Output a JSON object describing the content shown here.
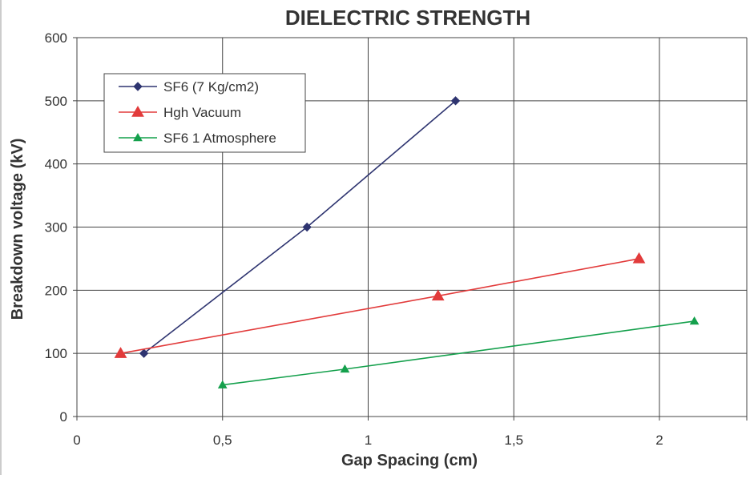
{
  "chart_data": {
    "type": "line",
    "title": "DIELECTRIC STRENGTH",
    "xlabel": "Gap Spacing (cm)",
    "ylabel": "Breakdown voltage (kV)",
    "xlim": [
      0,
      2.3
    ],
    "ylim": [
      0,
      600
    ],
    "x_ticks": [
      {
        "value": 0,
        "label": "0"
      },
      {
        "value": 0.5,
        "label": "0,5"
      },
      {
        "value": 1,
        "label": "1"
      },
      {
        "value": 1.5,
        "label": "1,5"
      },
      {
        "value": 2,
        "label": "2"
      }
    ],
    "y_ticks": [
      {
        "value": 0,
        "label": "0"
      },
      {
        "value": 100,
        "label": "100"
      },
      {
        "value": 200,
        "label": "200"
      },
      {
        "value": 300,
        "label": "300"
      },
      {
        "value": 400,
        "label": "400"
      },
      {
        "value": 500,
        "label": "500"
      },
      {
        "value": 600,
        "label": "600"
      }
    ],
    "grid": true,
    "legend_position": "top-left",
    "series": [
      {
        "name": "SF6 (7 Kg/cm2)",
        "color": "#2e3470",
        "marker": "diamond",
        "points": [
          [
            0.23,
            100
          ],
          [
            0.79,
            300
          ],
          [
            1.3,
            500
          ]
        ]
      },
      {
        "name": "Hgh Vacuum",
        "color": "#e23b3b",
        "marker": "triangle",
        "points": [
          [
            0.15,
            100
          ],
          [
            1.24,
            191
          ],
          [
            1.93,
            250
          ]
        ]
      },
      {
        "name": "SF6 1 Atmosphere",
        "color": "#14a04c",
        "marker": "triangle-small",
        "points": [
          [
            0.5,
            50
          ],
          [
            0.92,
            75
          ],
          [
            2.12,
            151
          ]
        ]
      }
    ]
  }
}
